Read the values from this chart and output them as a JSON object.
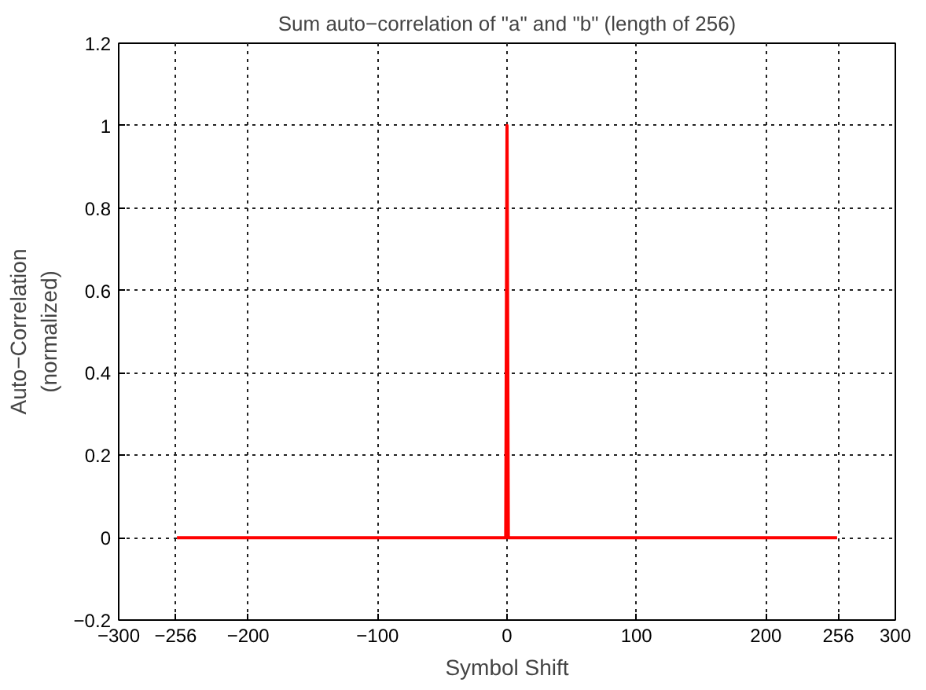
{
  "chart_data": {
    "type": "line",
    "title": "Sum auto−correlation of \"a\" and \"b\" (length of 256)",
    "xlabel": "Symbol Shift",
    "ylabel": "Auto−Correlation\n(normalized)",
    "x": [
      -255,
      -1,
      0,
      1,
      255
    ],
    "series": [
      {
        "color": "#ff0000",
        "values": [
          0,
          0,
          1,
          0,
          0
        ]
      }
    ],
    "xlim": [
      -300,
      300
    ],
    "xticks": [
      {
        "value": -300,
        "label": "−300"
      },
      {
        "value": -256,
        "label": "−256"
      },
      {
        "value": -200,
        "label": "−200"
      },
      {
        "value": -100,
        "label": "−100"
      },
      0,
      100,
      200,
      256,
      300
    ],
    "ylim": [
      -0.2,
      1.2
    ],
    "yticks": [
      {
        "value": -0.2,
        "label": "−0.2"
      },
      0,
      0.2,
      0.4,
      0.6,
      0.8,
      1,
      1.2
    ],
    "grid": true,
    "line_style": "solid"
  }
}
